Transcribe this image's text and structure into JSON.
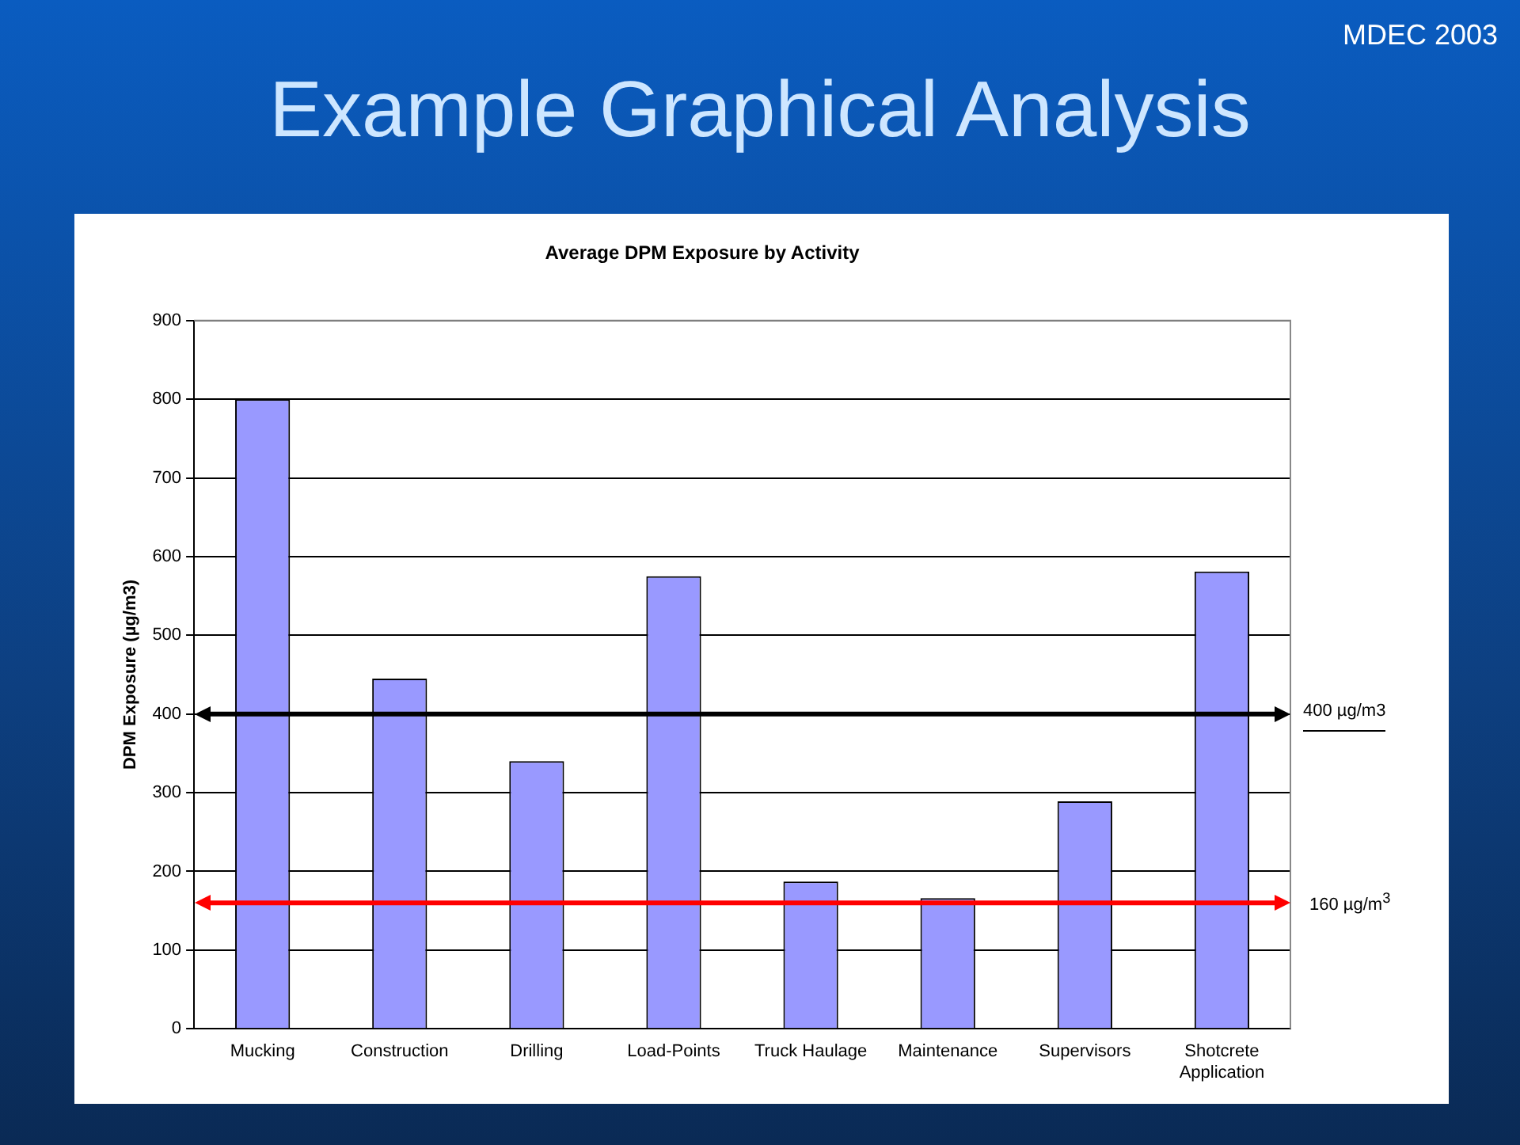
{
  "chart_data": {
    "type": "bar",
    "title": "Average DPM Exposure by Activity",
    "ylabel": "DPM Exposure (µg/m3)",
    "categories": [
      "Mucking",
      "Construction",
      "Drilling",
      "Load-Points",
      "Truck Haulage",
      "Maintenance",
      "Supervisors",
      "Shotcrete Application"
    ],
    "values": [
      800,
      445,
      340,
      575,
      187,
      166,
      289,
      581
    ],
    "color": "#9999ff",
    "ylim": [
      0,
      900
    ],
    "yticks": [
      0,
      100,
      200,
      300,
      400,
      500,
      600,
      700,
      800,
      900
    ],
    "grid": "y",
    "legend": false,
    "ref_lines": [
      {
        "axis": "y",
        "value": 400,
        "label": "400 µg/m3",
        "color": "#000000"
      },
      {
        "axis": "y",
        "value": 160,
        "label": "160 µg/m$^{3}$",
        "color": "#ff0000"
      }
    ],
    "annotations": [
      "Example Graphical Analysis",
      "MDEC 2003"
    ]
  }
}
